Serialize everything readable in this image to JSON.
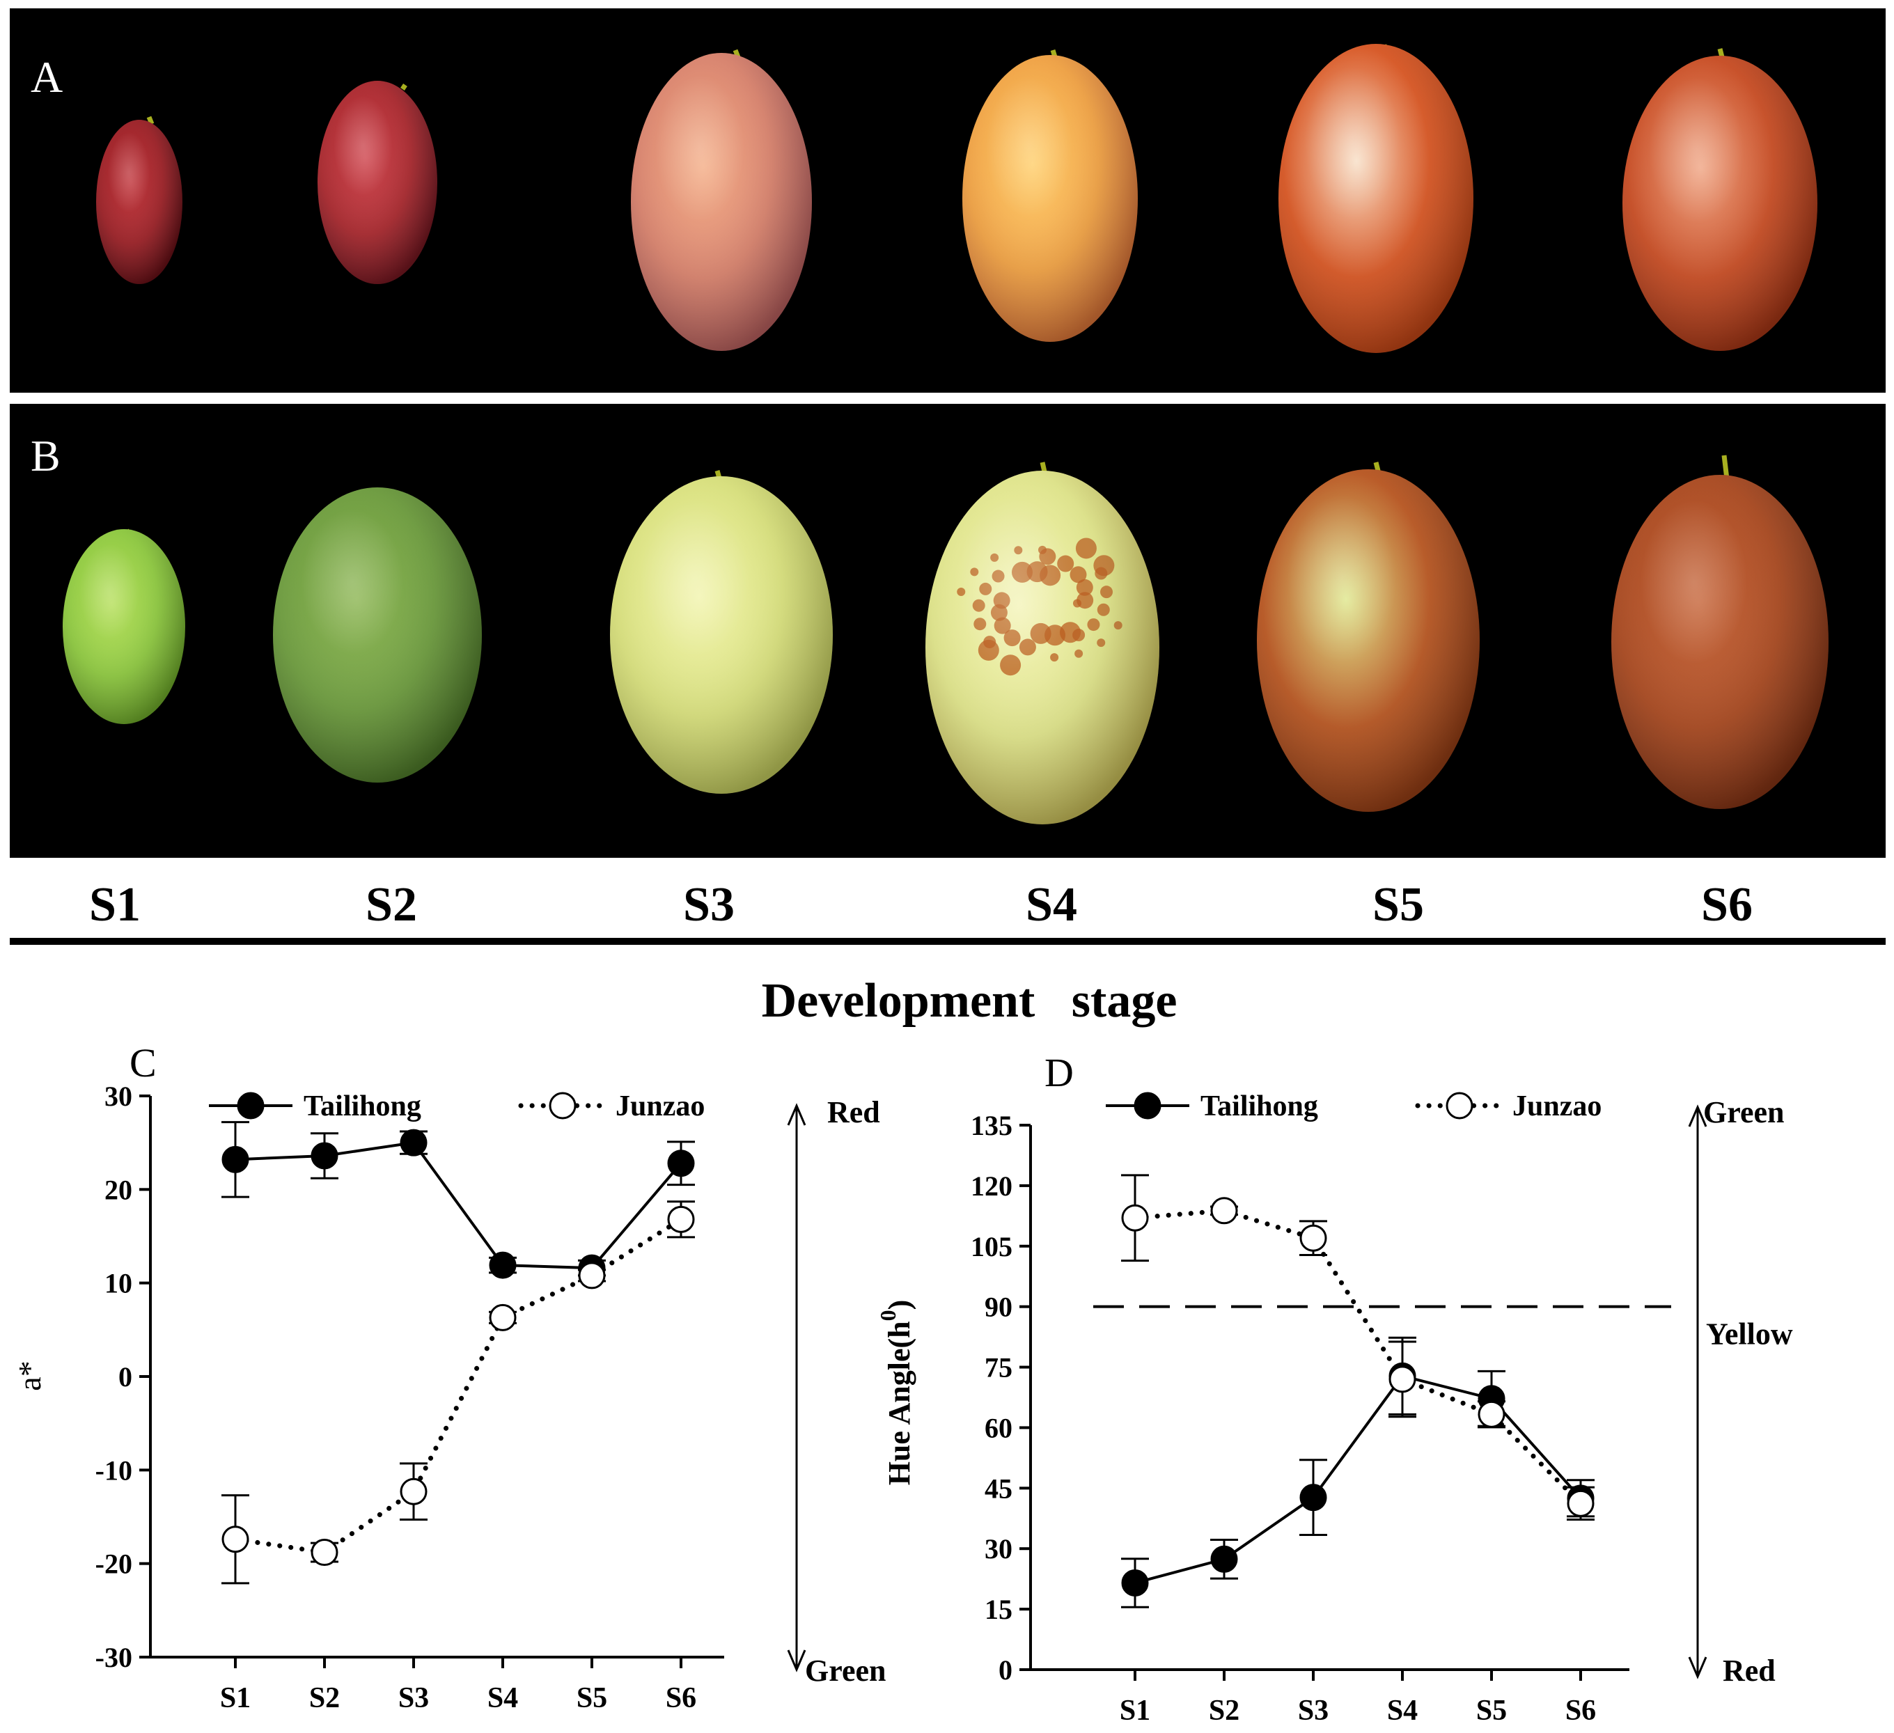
{
  "figure": {
    "panels": {
      "A": "A",
      "B": "B",
      "C": "C",
      "D": "D"
    },
    "stage_labels": [
      "S1",
      "S2",
      "S3",
      "S4",
      "S5",
      "S6"
    ],
    "development_stage_title": "Development   stage",
    "photo_row_A": {
      "cultivar": "Tailihong",
      "fruit_colors": [
        {
          "base": "#9a1c22",
          "hi": "#c23a40",
          "shade": "#4a0a10"
        },
        {
          "base": "#a8242a",
          "hi": "#d04a52",
          "shade": "#56101a"
        },
        {
          "base": "#d8806a",
          "hi": "#f4b08a",
          "shade": "#9a4a50"
        },
        {
          "base": "#f0a040",
          "hi": "#ffd070",
          "shade": "#c05a30"
        },
        {
          "base": "#d85420",
          "hi": "#f8e0c8",
          "shade": "#a83a10"
        },
        {
          "base": "#c84a20",
          "hi": "#f0a888",
          "shade": "#8a2a10"
        }
      ]
    },
    "photo_row_B": {
      "cultivar": "Junzao",
      "fruit_colors": [
        {
          "base": "#8cc83c",
          "hi": "#b8e060",
          "shade": "#5a9020"
        },
        {
          "base": "#6a9a3a",
          "hi": "#90b858",
          "shade": "#3e6420"
        },
        {
          "base": "#d8e07a",
          "hi": "#f2f4b0",
          "shade": "#a8b04a"
        },
        {
          "base": "#dfe488",
          "hi": "#f4f4bc",
          "shade": "#b0a040",
          "spots": "#b85a1a"
        },
        {
          "base": "#b8541e",
          "hi": "#e0e890",
          "shade": "#7a3010"
        },
        {
          "base": "#a8461c",
          "hi": "#c86a40",
          "shade": "#6a2810"
        }
      ]
    }
  },
  "chart_data": [
    {
      "panel": "C",
      "type": "line",
      "ylabel": "a*",
      "xlabel": "",
      "categories": [
        "S1",
        "S2",
        "S3",
        "S4",
        "S5",
        "S6"
      ],
      "ylim": [
        -30,
        30
      ],
      "yticks": [
        -30,
        -20,
        -10,
        0,
        10,
        20,
        30
      ],
      "series": [
        {
          "name": "Tailihong",
          "marker": "filled",
          "line": "solid",
          "values": [
            23.2,
            23.6,
            25.0,
            11.9,
            11.6,
            22.8
          ],
          "errors": [
            4.0,
            2.4,
            1.2,
            0.8,
            0.8,
            2.3
          ]
        },
        {
          "name": "Junzao",
          "marker": "open",
          "line": "dotted",
          "values": [
            -17.4,
            -18.8,
            -12.3,
            6.3,
            10.8,
            16.8
          ],
          "errors": [
            4.7,
            1.0,
            3.0,
            0.6,
            0.6,
            1.9
          ]
        }
      ],
      "axis_annotations": {
        "top": "Red",
        "bottom": "Green"
      }
    },
    {
      "panel": "D",
      "type": "line",
      "ylabel": "Hue Angle(h",
      "ylabel_superscript": "0",
      "ylabel_close": ")",
      "xlabel": "",
      "categories": [
        "S1",
        "S2",
        "S3",
        "S4",
        "S5",
        "S6"
      ],
      "ylim": [
        0,
        135
      ],
      "yticks": [
        0,
        15,
        30,
        45,
        60,
        75,
        90,
        105,
        120,
        135
      ],
      "reference_line": {
        "y": 90,
        "style": "dashed",
        "label": "Yellow"
      },
      "series": [
        {
          "name": "Tailihong",
          "marker": "filled",
          "line": "solid",
          "values": [
            21.5,
            27.4,
            42.7,
            72.8,
            67.2,
            42.5
          ],
          "errors": [
            6.0,
            4.8,
            9.3,
            9.5,
            6.8,
            4.5
          ]
        },
        {
          "name": "Junzao",
          "marker": "open",
          "line": "dotted",
          "values": [
            112.0,
            113.8,
            107.0,
            72.0,
            63.3,
            41.2
          ],
          "errors": [
            10.6,
            1.0,
            4.2,
            9.3,
            3.2,
            4.0
          ]
        }
      ],
      "axis_annotations": {
        "top": "Green",
        "bottom": "Red"
      }
    }
  ]
}
